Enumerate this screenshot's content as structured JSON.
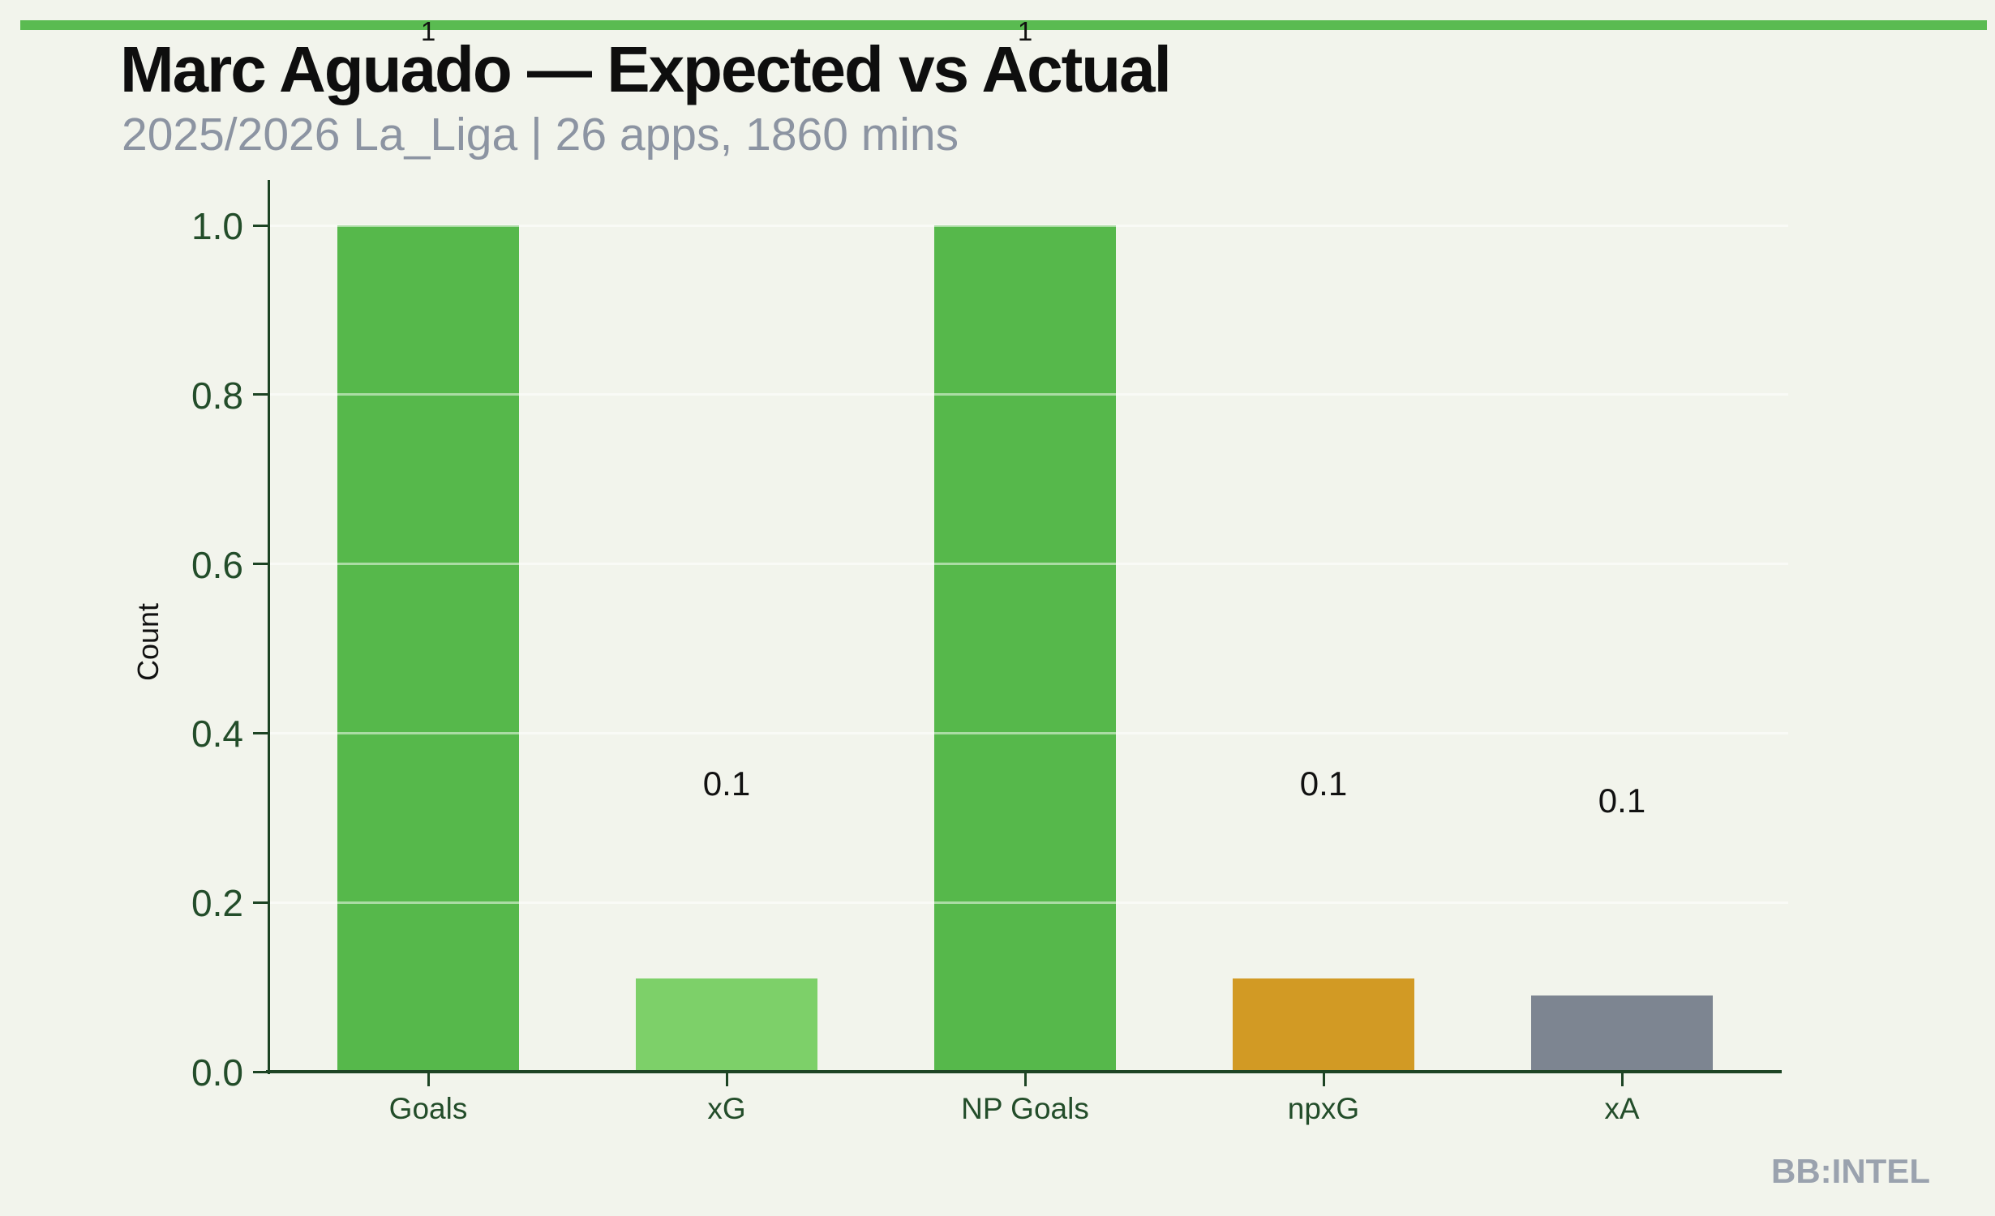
{
  "watermark": "BB:INTEL",
  "colors": {
    "background": "#f2f4ec",
    "accent_bar": "#5abb51",
    "axis": "#1d4424",
    "tick_text": "#234d2a",
    "subtitle_text": "#8c94a2",
    "grid": "rgba(255,255,255,0.5)",
    "watermark_text": "#9aa2ae"
  },
  "chart_data": {
    "type": "bar",
    "title": "Marc Aguado — Expected vs Actual",
    "subtitle": "2025/2026 La_Liga | 26 apps, 1860 mins",
    "xlabel": "",
    "ylabel": "Count",
    "categories": [
      "Goals",
      "xG",
      "NP Goals",
      "npxG",
      "xA"
    ],
    "values": [
      1.0,
      0.11,
      1.0,
      0.11,
      0.09
    ],
    "value_labels": [
      "1",
      "0.1",
      "1",
      "0.1",
      "0.1"
    ],
    "bar_colors": [
      "#56b84b",
      "#7dd069",
      "#56b84b",
      "#d29a24",
      "#7d8591"
    ],
    "ylim": [
      0.0,
      1.0
    ],
    "yticks": [
      0.0,
      0.2,
      0.4,
      0.6,
      0.8,
      1.0
    ],
    "ytick_labels": [
      "0.0",
      "0.2",
      "0.4",
      "0.6",
      "0.8",
      "1.0"
    ],
    "grid": true,
    "legend": false
  }
}
